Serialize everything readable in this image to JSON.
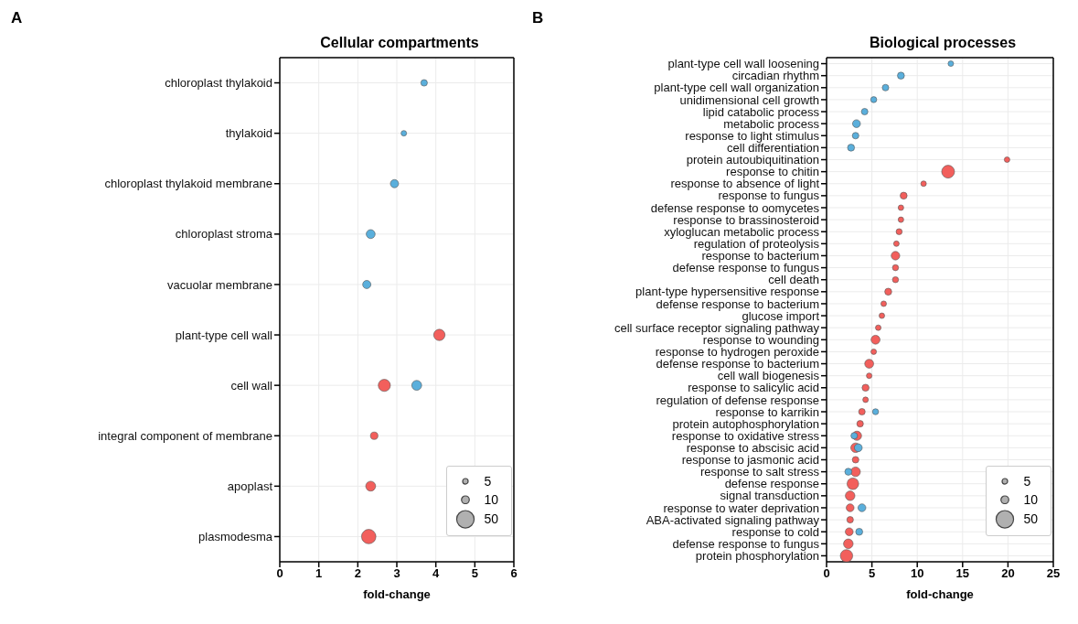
{
  "chart_data": [
    {
      "type": "bubble",
      "orientation": "horizontal",
      "title": "Cellular compartments",
      "xlabel": "fold-change",
      "annotations": [
        "A"
      ],
      "categories": [
        "chloroplast thylakoid",
        "thylakoid",
        "chloroplast thylakoid membrane",
        "chloroplast stroma",
        "vacuolar membrane",
        "plant-type cell wall",
        "cell wall",
        "integral component of membrane",
        "apoplast",
        "plasmodesma"
      ],
      "series": [
        {
          "color": "#f25f5c",
          "values": [
            null,
            null,
            null,
            null,
            null,
            4.09,
            2.68,
            2.42,
            2.33,
            2.28
          ],
          "sizes": [
            null,
            null,
            null,
            null,
            null,
            21,
            24,
            9,
            16,
            34
          ]
        },
        {
          "color": "#5aafdc",
          "values": [
            3.7,
            3.18,
            2.94,
            2.33,
            2.23,
            null,
            3.51,
            null,
            null,
            null
          ],
          "sizes": [
            7,
            5,
            11,
            13,
            11,
            null,
            16,
            null,
            null,
            null
          ]
        }
      ],
      "size_legend": [
        5,
        10,
        50
      ],
      "xlim": [
        0,
        6
      ],
      "xticks": [
        0,
        1,
        2,
        3,
        4,
        5,
        6
      ],
      "grid": true
    },
    {
      "type": "bubble",
      "orientation": "horizontal",
      "title": "Biological processes",
      "xlabel": "fold-change",
      "annotations": [
        "B"
      ],
      "categories": [
        "plant-type cell wall loosening",
        "circadian rhythm",
        "plant-type cell wall organization",
        "unidimensional cell growth",
        "lipid catabolic process",
        "metabolic process",
        "response to light stimulus",
        "cell differentiation",
        "protein autoubiquitination",
        "response to chitin",
        "response to absence of light",
        "response to fungus",
        "defense response to oomycetes",
        "response to brassinosteroid",
        "xyloglucan metabolic process",
        "regulation of proteolysis",
        "response to bacterium",
        "defense response to fungus",
        "cell death",
        "plant-type hypersensitive response",
        "defense response to bacterium",
        "glucose import",
        "cell surface receptor signaling pathway",
        "response to wounding",
        "response to hydrogen peroxide",
        "defense response to bacterium",
        "cell wall biogenesis",
        "response to salicylic acid",
        "regulation of defense response",
        "response to karrikin",
        "protein autophosphorylation",
        "response to oxidative stress",
        "response to abscisic acid",
        "response to jasmonic acid",
        "response to salt stress",
        "defense response",
        "signal transduction",
        "response to water deprivation",
        "ABA-activated signaling pathway",
        "response to cold",
        "defense response to fungus",
        "protein phosphorylation"
      ],
      "series": [
        {
          "color": "#f25f5c",
          "values": [
            null,
            null,
            null,
            null,
            null,
            null,
            null,
            null,
            19.9,
            13.4,
            10.7,
            8.5,
            8.2,
            8.2,
            8.0,
            7.7,
            7.6,
            7.6,
            7.6,
            6.8,
            6.3,
            6.1,
            5.7,
            5.4,
            5.2,
            4.7,
            4.7,
            4.3,
            4.3,
            3.9,
            3.7,
            3.35,
            3.2,
            3.2,
            3.2,
            2.9,
            2.6,
            2.6,
            2.6,
            2.5,
            2.4,
            2.2
          ],
          "sizes": [
            null,
            null,
            null,
            null,
            null,
            null,
            null,
            null,
            5,
            27,
            5,
            8,
            5,
            5,
            6,
            5,
            12,
            6,
            6,
            8,
            5,
            5,
            5,
            13,
            5,
            13,
            5,
            8,
            5,
            7,
            7,
            14,
            15,
            7,
            15,
            22,
            15,
            10,
            7,
            10,
            15,
            25
          ]
        },
        {
          "color": "#5aafdc",
          "values": [
            13.7,
            8.2,
            6.5,
            5.2,
            4.2,
            3.3,
            3.2,
            2.7,
            null,
            null,
            null,
            null,
            null,
            null,
            null,
            null,
            null,
            null,
            null,
            null,
            null,
            null,
            null,
            null,
            null,
            null,
            null,
            null,
            null,
            5.4,
            null,
            3.05,
            3.5,
            null,
            2.4,
            null,
            null,
            3.9,
            null,
            3.6,
            null,
            null
          ],
          "sizes": [
            5,
            8,
            7,
            6,
            7,
            10,
            7,
            8,
            null,
            null,
            null,
            null,
            null,
            null,
            null,
            null,
            null,
            null,
            null,
            null,
            null,
            null,
            null,
            null,
            null,
            null,
            null,
            null,
            null,
            6,
            null,
            7,
            10,
            null,
            8,
            null,
            null,
            10,
            null,
            8,
            null,
            null
          ]
        }
      ],
      "size_legend": [
        5,
        10,
        50
      ],
      "xlim": [
        0,
        25
      ],
      "xticks": [
        0,
        5,
        10,
        15,
        20,
        25
      ],
      "grid": true
    }
  ]
}
